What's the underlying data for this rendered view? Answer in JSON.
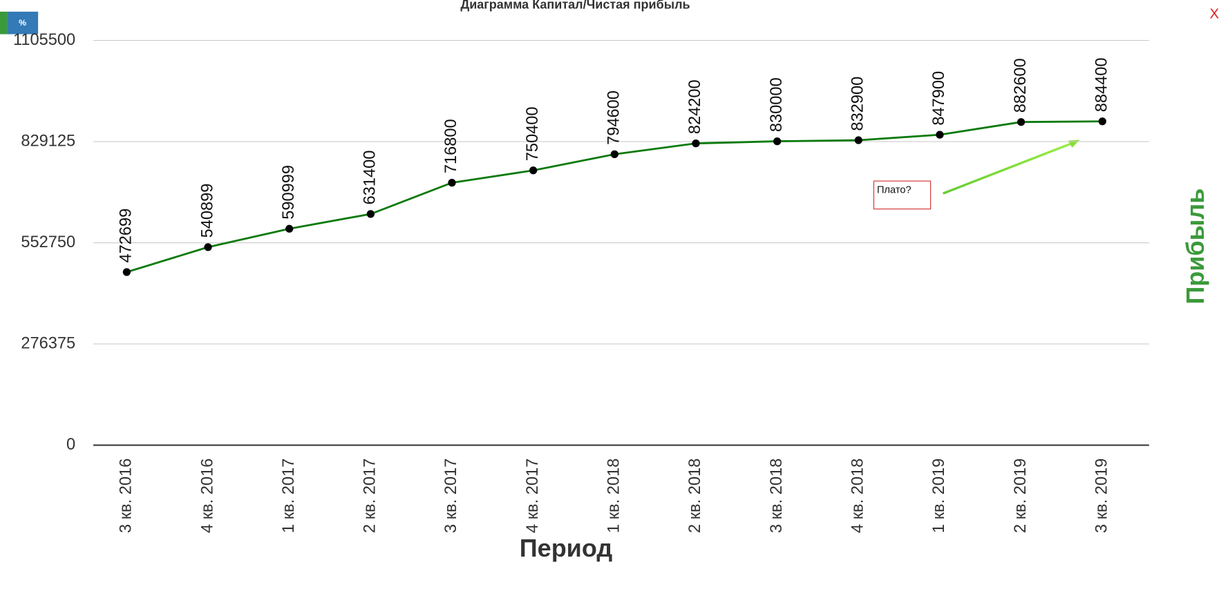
{
  "controls": {
    "percent_button": "%",
    "close_button": "X"
  },
  "chart_data": {
    "type": "line",
    "title": "Диаграмма Капитал/Чистая прибыль",
    "x_label": "Период",
    "y_label": "Прибыль",
    "annotation": "Плато?",
    "categories": [
      "3 кв. 2016",
      "4 кв. 2016",
      "1 кв. 2017",
      "2 кв. 2017",
      "3 кв. 2017",
      "4 кв. 2017",
      "1 кв. 2018",
      "2 кв. 2018",
      "3 кв. 2018",
      "4 кв. 2018",
      "1 кв. 2019",
      "2 кв. 2019",
      "3 кв. 2019"
    ],
    "series": [
      {
        "name": "Прибыль",
        "color": "#0b7a0b",
        "marker_color": "#000000",
        "values": [
          472699,
          540899,
          590999,
          631400,
          716800,
          750400,
          794600,
          824200,
          830000,
          832900,
          847900,
          882600,
          884400
        ]
      }
    ],
    "ylim": [
      0,
      1105500
    ],
    "yticks": [
      0,
      276375,
      552750,
      829125,
      1105500
    ],
    "grid": true
  }
}
